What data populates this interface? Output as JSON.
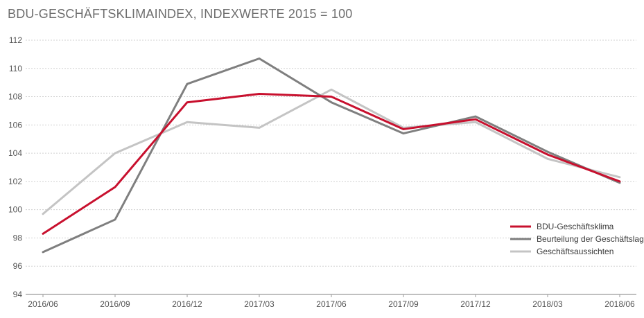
{
  "chart_data": {
    "type": "line",
    "title": "BDU-GESCHÄFTSKLIMAINDEX, INDEXWERTE 2015 = 100",
    "xlabel": "",
    "ylabel": "",
    "categories": [
      "2016/06",
      "2016/09",
      "2016/12",
      "2017/03",
      "2017/06",
      "2017/09",
      "2017/12",
      "2018/03",
      "2018/06"
    ],
    "ylim": [
      94,
      112
    ],
    "yticks": [
      94,
      96,
      98,
      100,
      102,
      104,
      106,
      108,
      110,
      112
    ],
    "grid": true,
    "legend_position": "bottom-right",
    "series": [
      {
        "name": "BDU-Geschäftsklima",
        "color": "#c8102e",
        "values": [
          98.3,
          101.6,
          107.6,
          108.2,
          108.0,
          105.7,
          106.4,
          103.9,
          102.0
        ]
      },
      {
        "name": "Beurteilung der Geschäftslage",
        "color": "#7f7f7f",
        "values": [
          97.0,
          99.3,
          108.9,
          110.7,
          107.6,
          105.4,
          106.6,
          104.1,
          101.9
        ]
      },
      {
        "name": "Geschäftsaussichten",
        "color": "#c4c4c4",
        "values": [
          99.7,
          104.0,
          106.2,
          105.8,
          108.5,
          105.8,
          106.2,
          103.6,
          102.3
        ]
      }
    ]
  }
}
